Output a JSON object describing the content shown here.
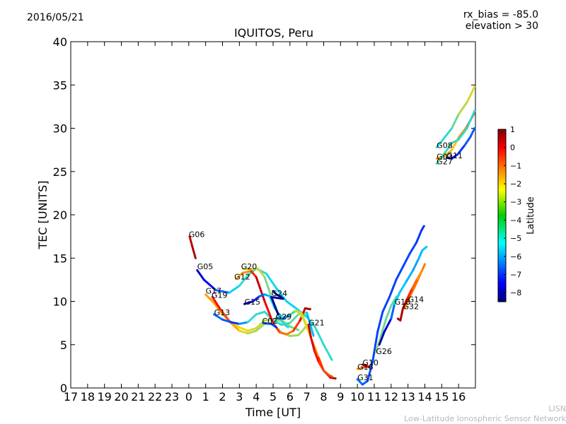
{
  "header": {
    "date": "2016/05/21",
    "rx_bias": "rx_bias = -85.0",
    "elevation": "elevation > 30"
  },
  "footer": {
    "line1": "LISN",
    "line2": "Low-Latitude Ionospheric Sensor Network"
  },
  "chart_data": {
    "type": "scatter",
    "title": "IQUITOS, Peru",
    "xlabel": "Time [UT]",
    "ylabel": "TEC [UNITS]",
    "xlim": [
      17,
      41
    ],
    "ylim": [
      0,
      40
    ],
    "x_tick_labels": [
      "17",
      "18",
      "19",
      "20",
      "21",
      "22",
      "23",
      "0",
      "1",
      "2",
      "3",
      "4",
      "5",
      "6",
      "7",
      "8",
      "9",
      "10",
      "11",
      "12",
      "13",
      "14",
      "15",
      "16"
    ],
    "y_ticks": [
      0,
      5,
      10,
      15,
      20,
      25,
      30,
      35,
      40
    ],
    "grid": false,
    "legend": "none",
    "colorbar": {
      "label": "Latitude",
      "min": -8.5,
      "max": 1,
      "ticks": [
        1,
        0,
        -1,
        -2,
        -3,
        -4,
        -5,
        -6,
        -7,
        -8
      ],
      "tick_labels": [
        "1",
        "0",
        "−1",
        "−2",
        "−3",
        "−4",
        "−5",
        "−6",
        "−7",
        "−8"
      ]
    },
    "satellites": [
      {
        "name": "G06",
        "label_at": [
          24.0,
          17.5
        ],
        "points": [
          [
            24.05,
            17.5
          ],
          [
            24.2,
            16.4
          ],
          [
            24.4,
            15.0
          ]
        ],
        "lat": [
          0.3,
          0.5,
          0.7
        ]
      },
      {
        "name": "G05",
        "label_at": [
          24.5,
          13.8
        ],
        "points": [
          [
            24.5,
            13.6
          ],
          [
            24.9,
            12.5
          ],
          [
            25.6,
            11.3
          ],
          [
            26.4,
            11.0
          ],
          [
            27.0,
            11.8
          ],
          [
            27.5,
            13.0
          ],
          [
            28.0,
            13.8
          ],
          [
            28.6,
            13.2
          ],
          [
            29.2,
            11.5
          ],
          [
            29.8,
            10.0
          ],
          [
            30.5,
            9.0
          ],
          [
            31.0,
            8.2
          ],
          [
            31.5,
            7.0
          ],
          [
            32.0,
            5.0
          ],
          [
            32.5,
            3.2
          ]
        ],
        "lat": [
          -8,
          -7.5,
          -7,
          -5.5,
          -4.5,
          -4.5,
          -4.5,
          -4.5,
          -5,
          -5,
          -5,
          -4.5,
          -4.5,
          -4.5,
          -4.5
        ]
      },
      {
        "name": "G17",
        "label_at": [
          25.0,
          11.0
        ],
        "points": [
          [
            25.0,
            10.8
          ],
          [
            25.5,
            9.8
          ],
          [
            26.0,
            8.5
          ],
          [
            26.5,
            7.6
          ],
          [
            27.0,
            7.0
          ],
          [
            27.5,
            6.6
          ],
          [
            28.0,
            6.9
          ],
          [
            28.5,
            7.8
          ],
          [
            29.0,
            7.9
          ],
          [
            29.6,
            7.7
          ],
          [
            30.0,
            7.1
          ],
          [
            30.5,
            6.7
          ]
        ],
        "lat": [
          -1.8,
          -2,
          -2.2,
          -2.4,
          -2.6,
          -2.8,
          -3,
          -3.2,
          -3.4,
          -3.6,
          -3.8,
          -4
        ]
      },
      {
        "name": "G19",
        "label_at": [
          25.35,
          10.5
        ],
        "points": [
          [
            25.4,
            10.5
          ],
          [
            25.9,
            9.0
          ],
          [
            26.5,
            7.5
          ],
          [
            27.0,
            6.6
          ],
          [
            27.5,
            6.3
          ],
          [
            28.0,
            6.6
          ],
          [
            28.5,
            7.4
          ],
          [
            29.0,
            7.4
          ],
          [
            29.5,
            6.4
          ],
          [
            30.0,
            6.0
          ],
          [
            30.5,
            6.1
          ],
          [
            31.0,
            7.2
          ]
        ],
        "lat": [
          0,
          -0.5,
          -1.5,
          -2.5,
          -3.2,
          -3.4,
          -3.4,
          -3.5,
          -3.5,
          -3.5,
          -3.5,
          -3.5
        ]
      },
      {
        "name": "G13",
        "label_at": [
          25.5,
          8.5
        ],
        "points": [
          [
            25.5,
            8.5
          ],
          [
            26.0,
            7.9
          ],
          [
            26.5,
            7.6
          ],
          [
            27.0,
            7.4
          ],
          [
            27.5,
            7.6
          ],
          [
            28.0,
            8.5
          ],
          [
            28.5,
            8.8
          ],
          [
            29.0,
            7.8
          ],
          [
            29.5,
            7.3
          ],
          [
            30.0,
            7.5
          ],
          [
            30.5,
            8.5
          ],
          [
            31.0,
            8.7
          ],
          [
            31.4,
            6.0
          ]
        ],
        "lat": [
          -6,
          -6.2,
          -6.5,
          -7,
          -4.5,
          -4.5,
          -4.5,
          -4.5,
          -4.5,
          -4.5,
          -3.5,
          -3.5,
          -7
        ]
      },
      {
        "name": "G12",
        "label_at": [
          26.7,
          12.6
        ],
        "points": [
          [
            26.8,
            12.6
          ],
          [
            27.2,
            13.3
          ],
          [
            27.7,
            13.5
          ],
          [
            28.0,
            12.8
          ],
          [
            28.5,
            10.0
          ],
          [
            29.0,
            7.5
          ],
          [
            29.4,
            6.4
          ],
          [
            29.8,
            6.2
          ],
          [
            30.2,
            6.6
          ],
          [
            30.6,
            7.8
          ],
          [
            30.9,
            9.2
          ],
          [
            31.2,
            9.1
          ]
        ],
        "lat": [
          -2,
          -2,
          -1.5,
          0.5,
          0.2,
          -0.5,
          -1.2,
          -1.5,
          -1.5,
          0,
          0.5,
          0.8
        ]
      },
      {
        "name": "G20",
        "label_at": [
          27.1,
          13.8
        ],
        "points": [
          [
            27.2,
            13.8
          ],
          [
            27.7,
            13.7
          ],
          [
            28.1,
            13.8
          ],
          [
            28.5,
            12.8
          ],
          [
            28.9,
            10.5
          ],
          [
            29.3,
            8.5
          ],
          [
            29.6,
            7.4
          ],
          [
            29.9,
            7.0
          ]
        ],
        "lat": [
          -3,
          -3,
          -3,
          -3.2,
          -4.3,
          -4.5,
          -4.5,
          -4.5
        ]
      },
      {
        "name": "G15",
        "label_at": [
          27.3,
          9.7
        ],
        "points": [
          [
            27.3,
            9.7
          ],
          [
            27.8,
            10.0
          ],
          [
            28.2,
            10.6
          ],
          [
            28.5,
            10.8
          ],
          [
            28.8,
            10.6
          ],
          [
            29.1,
            9.2
          ],
          [
            29.4,
            8.4
          ],
          [
            29.7,
            8.2
          ],
          [
            30.0,
            8.5
          ],
          [
            30.4,
            8.9
          ],
          [
            30.7,
            8.6
          ],
          [
            31.0,
            7.2
          ]
        ],
        "lat": [
          -8.5,
          -7.5,
          -6.5,
          -6,
          -5,
          -5,
          -4.5,
          -4.5,
          -3,
          -2.5,
          -2.5,
          -3
        ]
      },
      {
        "name": "G24",
        "label_at": [
          28.9,
          10.7
        ],
        "points": [
          [
            29.0,
            11.2
          ],
          [
            29.2,
            10.8
          ],
          [
            29.4,
            10.6
          ],
          [
            29.6,
            10.3
          ],
          [
            28.9,
            10.5
          ],
          [
            29.3,
            8.5
          ]
        ],
        "lat": [
          -8.2,
          -8.2,
          -8.2,
          -8.2,
          -8.4,
          -8.4
        ]
      },
      {
        "name": "G29",
        "label_at": [
          29.15,
          8.0
        ],
        "points": [
          [
            29.2,
            8.1
          ],
          [
            29.6,
            8.0
          ],
          [
            30.0,
            8.4
          ],
          [
            30.3,
            8.9
          ],
          [
            30.6,
            8.7
          ],
          [
            30.9,
            7.5
          ],
          [
            31.3,
            5.5
          ],
          [
            31.7,
            3.5
          ],
          [
            32.0,
            2.0
          ],
          [
            32.4,
            1.2
          ],
          [
            32.7,
            1.1
          ]
        ],
        "lat": [
          -6,
          -6,
          -6,
          -3,
          -3,
          -3,
          -2.5,
          -1,
          -0.5,
          0.5,
          0.5
        ]
      },
      {
        "name": "C02",
        "label_at": [
          28.35,
          7.5
        ],
        "points": [
          [
            28.4,
            7.5
          ],
          [
            28.9,
            7.4
          ],
          [
            29.2,
            7.0
          ]
        ],
        "lat": [
          -6,
          -6.5,
          -7
        ]
      },
      {
        "name": "G21",
        "label_at": [
          31.1,
          7.3
        ],
        "points": [
          [
            31.1,
            7.3
          ],
          [
            31.25,
            5.8
          ],
          [
            31.45,
            4.3
          ],
          [
            31.7,
            3.0
          ],
          [
            32.0,
            2.0
          ],
          [
            32.3,
            1.5
          ],
          [
            32.5,
            1.3
          ]
        ],
        "lat": [
          0.5,
          0.2,
          0,
          -0.5,
          -1,
          -1,
          -1
        ]
      },
      {
        "name": "G16",
        "label_at": [
          34.0,
          2.2
        ],
        "points": [
          [
            34.0,
            2.2
          ],
          [
            34.3,
            2.3
          ],
          [
            34.6,
            2.6
          ]
        ],
        "lat": [
          -2,
          -1.5,
          -1
        ]
      },
      {
        "name": "G10",
        "label_at": [
          34.3,
          2.7
        ],
        "points": [
          [
            34.3,
            2.7
          ],
          [
            34.5,
            2.5
          ],
          [
            34.7,
            2.4
          ]
        ],
        "lat": [
          0.5,
          0.2,
          0
        ]
      },
      {
        "name": "G31",
        "label_at": [
          34.0,
          1.0
        ],
        "points": [
          [
            34.0,
            1.0
          ],
          [
            34.3,
            0.4
          ],
          [
            34.6,
            0.8
          ],
          [
            34.9,
            3.0
          ],
          [
            35.2,
            6.5
          ],
          [
            35.5,
            8.8
          ],
          [
            35.9,
            10.5
          ],
          [
            36.3,
            12.5
          ],
          [
            36.7,
            14.0
          ],
          [
            37.1,
            15.5
          ],
          [
            37.5,
            16.8
          ],
          [
            37.8,
            18.2
          ],
          [
            37.95,
            18.7
          ]
        ],
        "lat": [
          -6,
          -6.2,
          -6.4,
          -6.6,
          -6.6,
          -6.6,
          -6.6,
          -6.6,
          -6.6,
          -6.6,
          -6.6,
          -6.8,
          -6.8
        ]
      },
      {
        "name": "G26",
        "label_at": [
          35.1,
          4.0
        ],
        "points": [
          [
            35.1,
            4.1
          ],
          [
            35.4,
            6.0
          ],
          [
            35.7,
            8.0
          ],
          [
            36.0,
            9.5
          ],
          [
            36.3,
            10.5
          ],
          [
            36.5,
            10.8
          ]
        ],
        "lat": [
          -3.5,
          -3.8,
          -4,
          -4,
          -4.2,
          -4.2
        ]
      },
      {
        "name": "G18",
        "label_at": [
          36.2,
          9.7
        ],
        "points": [
          [
            35.3,
            5.0
          ],
          [
            35.6,
            6.5
          ],
          [
            36.0,
            8.0
          ],
          [
            36.2,
            9.7
          ],
          [
            36.5,
            11.0
          ],
          [
            36.9,
            12.3
          ],
          [
            37.3,
            13.6
          ],
          [
            37.6,
            14.8
          ],
          [
            37.85,
            15.9
          ],
          [
            38.1,
            16.3
          ]
        ],
        "lat": [
          -8,
          -8,
          -7.5,
          -5,
          -5,
          -5.3,
          -5.5,
          -5.5,
          -5.2,
          -5
        ]
      },
      {
        "name": "G14",
        "label_at": [
          37.0,
          10.0
        ],
        "points": [
          [
            36.8,
            9.2
          ],
          [
            37.1,
            10.5
          ],
          [
            37.4,
            11.7
          ],
          [
            37.7,
            13.0
          ],
          [
            38.0,
            14.3
          ]
        ],
        "lat": [
          -1.8,
          -1.5,
          -1.5,
          -1.5,
          -1.5
        ]
      },
      {
        "name": "G32",
        "label_at": [
          36.7,
          9.2
        ],
        "points": [
          [
            36.4,
            8.0
          ],
          [
            36.55,
            7.8
          ],
          [
            36.7,
            9.2
          ],
          [
            36.95,
            10.3
          ],
          [
            37.25,
            11.5
          ],
          [
            37.55,
            12.6
          ],
          [
            37.85,
            13.6
          ]
        ],
        "lat": [
          0.7,
          0.7,
          0.5,
          0,
          -1,
          -1.5,
          -2
        ]
      },
      {
        "name": "G08",
        "label_at": [
          38.7,
          27.8
        ],
        "points": [
          [
            38.7,
            27.8
          ],
          [
            39.2,
            29.0
          ],
          [
            39.6,
            30.0
          ],
          [
            40.0,
            31.6
          ],
          [
            40.5,
            33.0
          ],
          [
            40.95,
            34.8
          ]
        ],
        "lat": [
          -4.5,
          -4.5,
          -4.5,
          -3.5,
          -3,
          -3
        ]
      },
      {
        "name": "G03",
        "label_at": [
          38.7,
          26.5
        ],
        "points": [
          [
            38.7,
            26.5
          ],
          [
            39.2,
            26.8
          ],
          [
            39.6,
            27.5
          ],
          [
            40.0,
            28.9
          ],
          [
            40.5,
            30.2
          ],
          [
            40.95,
            31.8
          ]
        ],
        "lat": [
          -1.8,
          -2,
          -2.2,
          -2.5,
          -1,
          -0.5
        ]
      },
      {
        "name": "G27",
        "label_at": [
          38.7,
          25.9
        ],
        "points": [
          [
            38.7,
            25.9
          ],
          [
            39.2,
            27.2
          ],
          [
            39.6,
            28.3
          ],
          [
            40.0,
            28.7
          ],
          [
            40.5,
            30.0
          ],
          [
            40.95,
            32.0
          ]
        ],
        "lat": [
          -4,
          -4.2,
          -4.5,
          -4.5,
          -4.5,
          -4.5
        ]
      },
      {
        "name": "G11",
        "label_at": [
          39.3,
          26.6
        ],
        "points": [
          [
            39.3,
            26.6
          ],
          [
            39.6,
            26.5
          ],
          [
            39.95,
            27.0
          ],
          [
            40.35,
            28.0
          ],
          [
            40.7,
            29.0
          ],
          [
            40.95,
            30.0
          ]
        ],
        "lat": [
          -8,
          -8,
          -7,
          -6.5,
          -6.3,
          -6.3
        ]
      }
    ]
  }
}
